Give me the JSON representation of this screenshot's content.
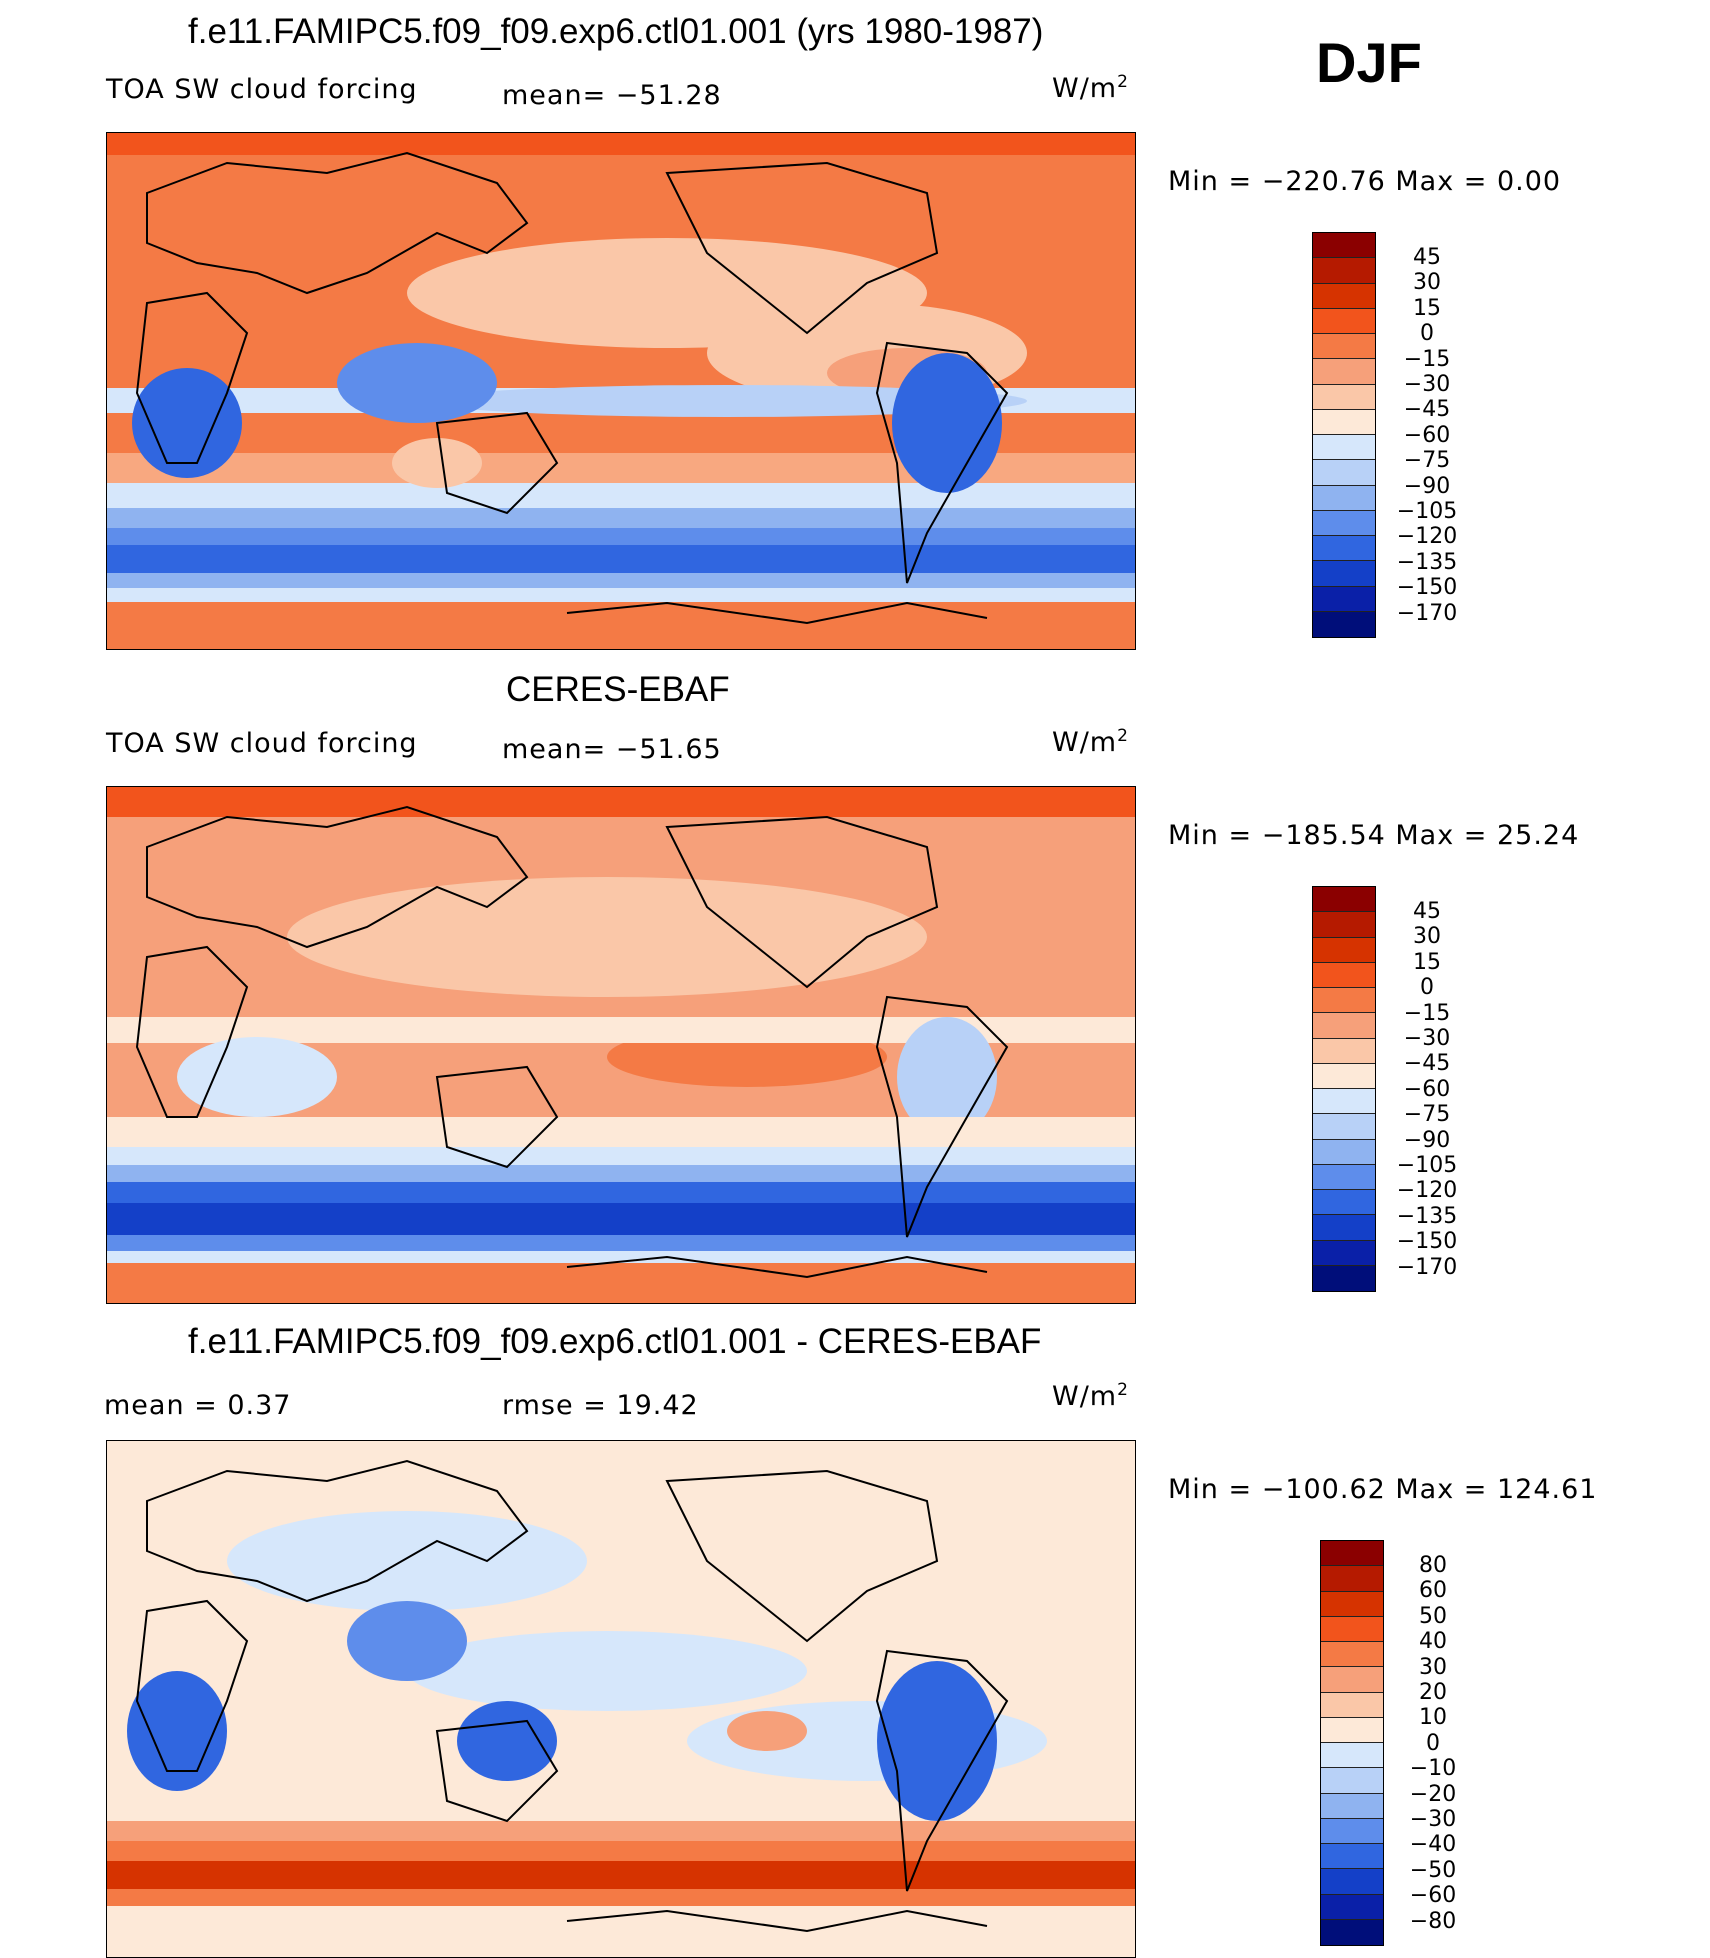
{
  "season": "DJF",
  "panels": [
    {
      "title": "f.e11.FAMIPC5.f09_f09.exp6.ctl01.001 (yrs 1980-1987)",
      "variable": "TOA SW cloud forcing",
      "stat1": "mean= −51.28",
      "stat2": "",
      "units": "W/m",
      "units_exp": "2",
      "minmax": "Min = −220.76 Max =   0.00",
      "levels": [
        "45",
        "30",
        "15",
        "0",
        "−15",
        "−30",
        "−45",
        "−60",
        "−75",
        "−90",
        "−105",
        "−120",
        "−135",
        "−150",
        "−170"
      ],
      "colors": [
        "#8b0000",
        "#b51a00",
        "#d63300",
        "#f2541c",
        "#f47a45",
        "#f6a07a",
        "#fac7a8",
        "#fde9d8",
        "#d6e7fb",
        "#b8d1f7",
        "#8fb3f0",
        "#5e8deb",
        "#3066e0",
        "#1440c8",
        "#0a20a8",
        "#000e7a"
      ]
    },
    {
      "title": "CERES-EBAF",
      "variable": "TOA SW cloud forcing",
      "stat1": "mean= −51.65",
      "stat2": "",
      "units": "W/m",
      "units_exp": "2",
      "minmax": "Min = −185.54 Max =  25.24",
      "levels": [
        "45",
        "30",
        "15",
        "0",
        "−15",
        "−30",
        "−45",
        "−60",
        "−75",
        "−90",
        "−105",
        "−120",
        "−135",
        "−150",
        "−170"
      ],
      "colors": [
        "#8b0000",
        "#b51a00",
        "#d63300",
        "#f2541c",
        "#f47a45",
        "#f6a07a",
        "#fac7a8",
        "#fde9d8",
        "#d6e7fb",
        "#b8d1f7",
        "#8fb3f0",
        "#5e8deb",
        "#3066e0",
        "#1440c8",
        "#0a20a8",
        "#000e7a"
      ]
    },
    {
      "title": "f.e11.FAMIPC5.f09_f09.exp6.ctl01.001 - CERES-EBAF",
      "variable": "",
      "stat1": "mean =    0.37",
      "stat2": "rmse =   19.42",
      "units": "W/m",
      "units_exp": "2",
      "minmax": "Min = −100.62 Max = 124.61",
      "levels": [
        "80",
        "60",
        "50",
        "40",
        "30",
        "20",
        "10",
        "0",
        "−10",
        "−20",
        "−30",
        "−40",
        "−50",
        "−60",
        "−80"
      ],
      "colors": [
        "#8b0000",
        "#b51a00",
        "#d63300",
        "#f2541c",
        "#f47a45",
        "#f6a07a",
        "#fac7a8",
        "#fde9d8",
        "#d6e7fb",
        "#b8d1f7",
        "#8fb3f0",
        "#5e8deb",
        "#3066e0",
        "#1440c8",
        "#0a20a8",
        "#000e7a"
      ]
    }
  ]
}
